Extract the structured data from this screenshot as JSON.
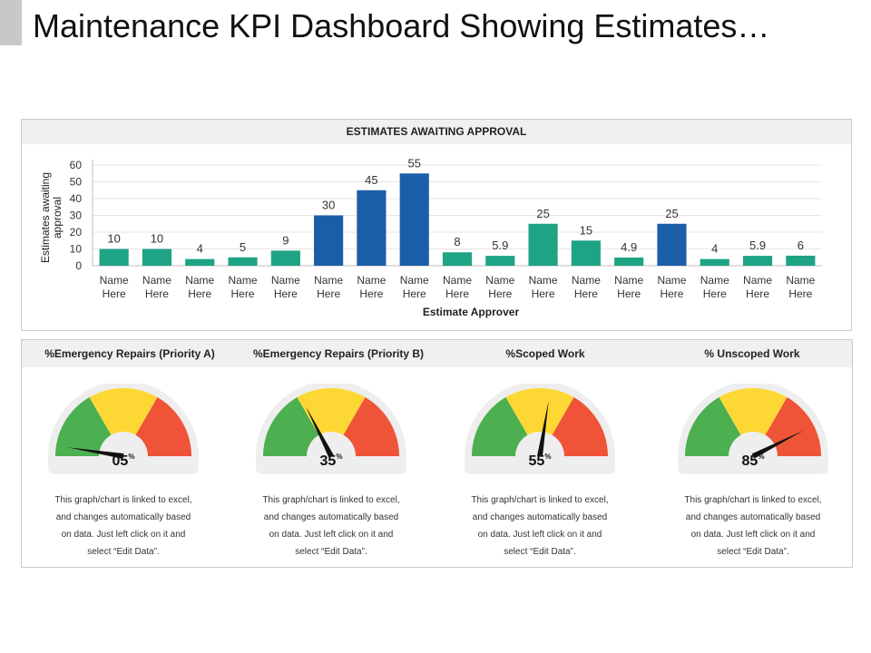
{
  "page": {
    "title": "Maintenance KPI Dashboard Showing Estimates…"
  },
  "chart_data": [
    {
      "type": "bar",
      "title": "ESTIMATES AWAITING APPROVAL",
      "xlabel": "Estimate Approver",
      "ylabel": "Estimates awaiting approval",
      "ylim": [
        0,
        60
      ],
      "yticks": [
        0,
        10,
        20,
        30,
        40,
        50,
        60
      ],
      "categories": [
        "Name Here",
        "Name Here",
        "Name Here",
        "Name Here",
        "Name Here",
        "Name Here",
        "Name Here",
        "Name Here",
        "Name Here",
        "Name Here",
        "Name Here",
        "Name Here",
        "Name Here",
        "Name Here",
        "Name Here",
        "Name Here",
        "Name Here"
      ],
      "values": [
        10,
        10,
        4,
        5,
        9,
        30,
        45,
        55,
        8,
        5.9,
        25,
        15,
        4.9,
        25,
        4,
        5.9,
        6
      ],
      "value_labels": [
        "10",
        "10",
        "4",
        "5",
        "9",
        "30",
        "45",
        "55",
        "8",
        "5.9",
        "25",
        "15",
        "4.9",
        "25",
        "4",
        "5.9",
        "6"
      ],
      "highlight": [
        false,
        false,
        false,
        false,
        false,
        true,
        true,
        true,
        false,
        false,
        false,
        false,
        false,
        true,
        false,
        false,
        false
      ],
      "colors": {
        "normal": "#1fa385",
        "highlight": "#1b5ea8",
        "grid": "#e6e6e6",
        "axis": "#bfbfbf"
      },
      "grid": true
    },
    {
      "type": "gauge",
      "gauges": [
        {
          "title": "%Emergency Repairs (Priority A)",
          "value": 5,
          "display": "05",
          "unit": "%"
        },
        {
          "title": "%Emergency Repairs (Priority B)",
          "value": 35,
          "display": "35",
          "unit": "%"
        },
        {
          "title": "%Scoped Work",
          "value": 55,
          "display": "55",
          "unit": "%"
        },
        {
          "title": "% Unscoped Work",
          "value": 85,
          "display": "85",
          "unit": "%"
        }
      ],
      "zone_colors": [
        "#4caf50",
        "#fdd835",
        "#ef5338"
      ],
      "needle_color": "#111111"
    }
  ],
  "gauge_description": {
    "lines": [
      "This graph/chart is linked to excel,",
      "and changes automatically based",
      "on data. Just left click on it and",
      "select “Edit Data”."
    ]
  }
}
